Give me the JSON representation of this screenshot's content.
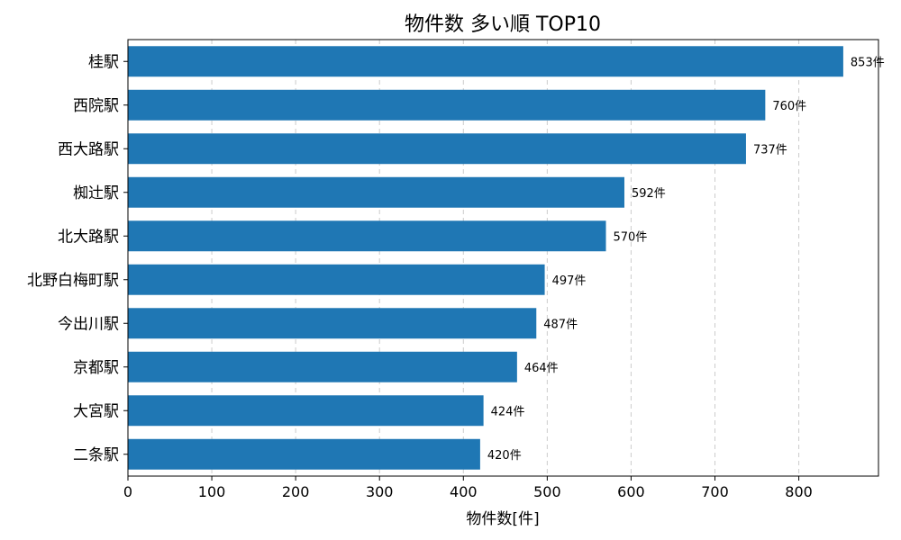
{
  "chart_data": {
    "type": "bar",
    "orientation": "horizontal",
    "title": "物件数 多い順 TOP10",
    "xlabel": "物件数[件]",
    "ylabel": "",
    "categories": [
      "桂駅",
      "西院駅",
      "西大路駅",
      "椥辻駅",
      "北大路駅",
      "北野白梅町駅",
      "今出川駅",
      "京都駅",
      "大宮駅",
      "二条駅"
    ],
    "values": [
      853,
      760,
      737,
      592,
      570,
      497,
      487,
      464,
      424,
      420
    ],
    "value_labels": [
      "853件",
      "760件",
      "737件",
      "592件",
      "570件",
      "497件",
      "487件",
      "464件",
      "424件",
      "420件"
    ],
    "xlim": [
      0,
      895
    ],
    "xticks": [
      0,
      100,
      200,
      300,
      400,
      500,
      600,
      700,
      800
    ],
    "xtick_labels": [
      "0",
      "100",
      "200",
      "300",
      "400",
      "500",
      "600",
      "700",
      "800"
    ],
    "grid": "x-dashed",
    "bar_color": "#1f77b4",
    "grid_color": "#cccccc"
  }
}
